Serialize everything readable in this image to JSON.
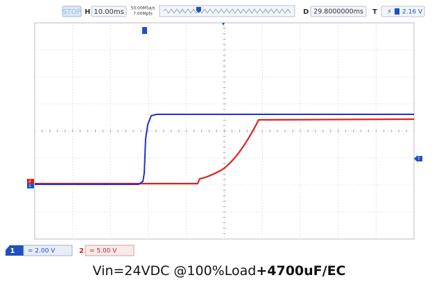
{
  "top_bar": {
    "status": "STOP",
    "h_label": "H",
    "timebase": "10.00ms",
    "sample_rate": "50.00MSa/s",
    "memory": "7.00Mpts",
    "d_label": "D",
    "delay": "29.8000000ms",
    "t_label": "T",
    "trigger_level": "2.16 V"
  },
  "channels": [
    {
      "number": "1",
      "scale": "= 2.00 V"
    },
    {
      "number": "2",
      "scale": "= 5.00 V"
    }
  ],
  "caption": {
    "text": "Vin=24VDC @100%Load",
    "bold": "+4700uF/EC"
  }
}
